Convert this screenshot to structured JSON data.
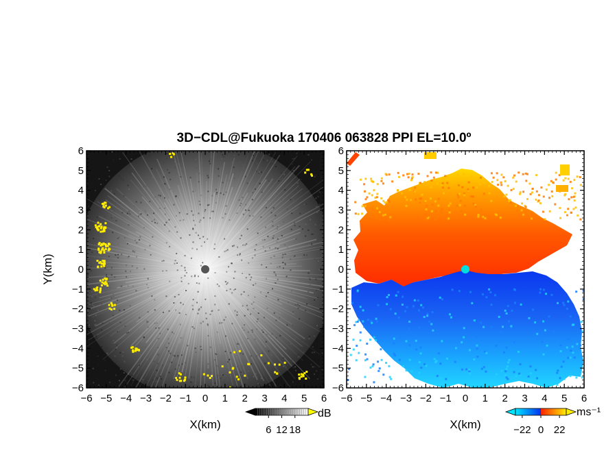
{
  "figure": {
    "title": "3D−CDL@Fukuoka 170406 063828 PPI EL=10.0º"
  },
  "chart_data": [
    {
      "type": "heatmap",
      "panel": "left",
      "title": "",
      "xlabel": "X(km)",
      "ylabel": "Y(km)",
      "xlim": [
        -6,
        6
      ],
      "ylim": [
        -6,
        6
      ],
      "xticks": [
        -6,
        -5,
        -4,
        -3,
        -2,
        -1,
        0,
        1,
        2,
        3,
        4,
        5,
        6
      ],
      "yticks": [
        -6,
        -5,
        -4,
        -3,
        -2,
        -1,
        0,
        1,
        2,
        3,
        4,
        5,
        6
      ],
      "xtick_labels": [
        "−6",
        "−5",
        "−4",
        "−3",
        "−2",
        "−1",
        "0",
        "1",
        "2",
        "3",
        "4",
        "5",
        "6"
      ],
      "ytick_labels": [
        "−6",
        "−5",
        "−4",
        "−3",
        "−2",
        "−1",
        "0",
        "1",
        "2",
        "3",
        "4",
        "5",
        "6"
      ],
      "colorbar": {
        "unit": "dB",
        "ticks": [
          6,
          12,
          18
        ],
        "tick_labels": [
          "6",
          "12",
          "18"
        ],
        "range": [
          0,
          24
        ],
        "colors": [
          "#000000",
          "#ffffff"
        ],
        "over_color": "#ffff00"
      },
      "colors": {
        "background": "#151515",
        "bright": "#f2f2f2",
        "highlight": "#ffee00",
        "center": "#555555"
      }
    },
    {
      "type": "heatmap",
      "panel": "right",
      "title": "",
      "xlabel": "X(km)",
      "ylabel": "",
      "xlim": [
        -6,
        6
      ],
      "ylim": [
        -6,
        6
      ],
      "xticks": [
        -6,
        -5,
        -4,
        -3,
        -2,
        -1,
        0,
        1,
        2,
        3,
        4,
        5,
        6
      ],
      "yticks": [
        -6,
        -5,
        -4,
        -3,
        -2,
        -1,
        0,
        1,
        2,
        3,
        4,
        5,
        6
      ],
      "xtick_labels": [
        "−6",
        "−5",
        "−4",
        "−3",
        "−2",
        "−1",
        "0",
        "1",
        "2",
        "3",
        "4",
        "5",
        "6"
      ],
      "ytick_labels": [
        "−6",
        "−5",
        "−4",
        "−3",
        "−2",
        "−1",
        "0",
        "1",
        "2",
        "3",
        "4",
        "5",
        "6"
      ],
      "colorbar": {
        "unit": "ms⁻¹",
        "ticks": [
          -22,
          0,
          22
        ],
        "tick_labels": [
          "−22",
          "0",
          "22"
        ],
        "range": [
          -30,
          30
        ],
        "colors": [
          "#00e5ff",
          "#0033ee",
          "#ff2200",
          "#ffee00"
        ]
      },
      "colors": {
        "approach": "#0a3cf0",
        "approach_far": "#18c0ff",
        "recede": "#ff3a00",
        "recede_far": "#ffd000",
        "center": "#00dddd"
      }
    }
  ]
}
